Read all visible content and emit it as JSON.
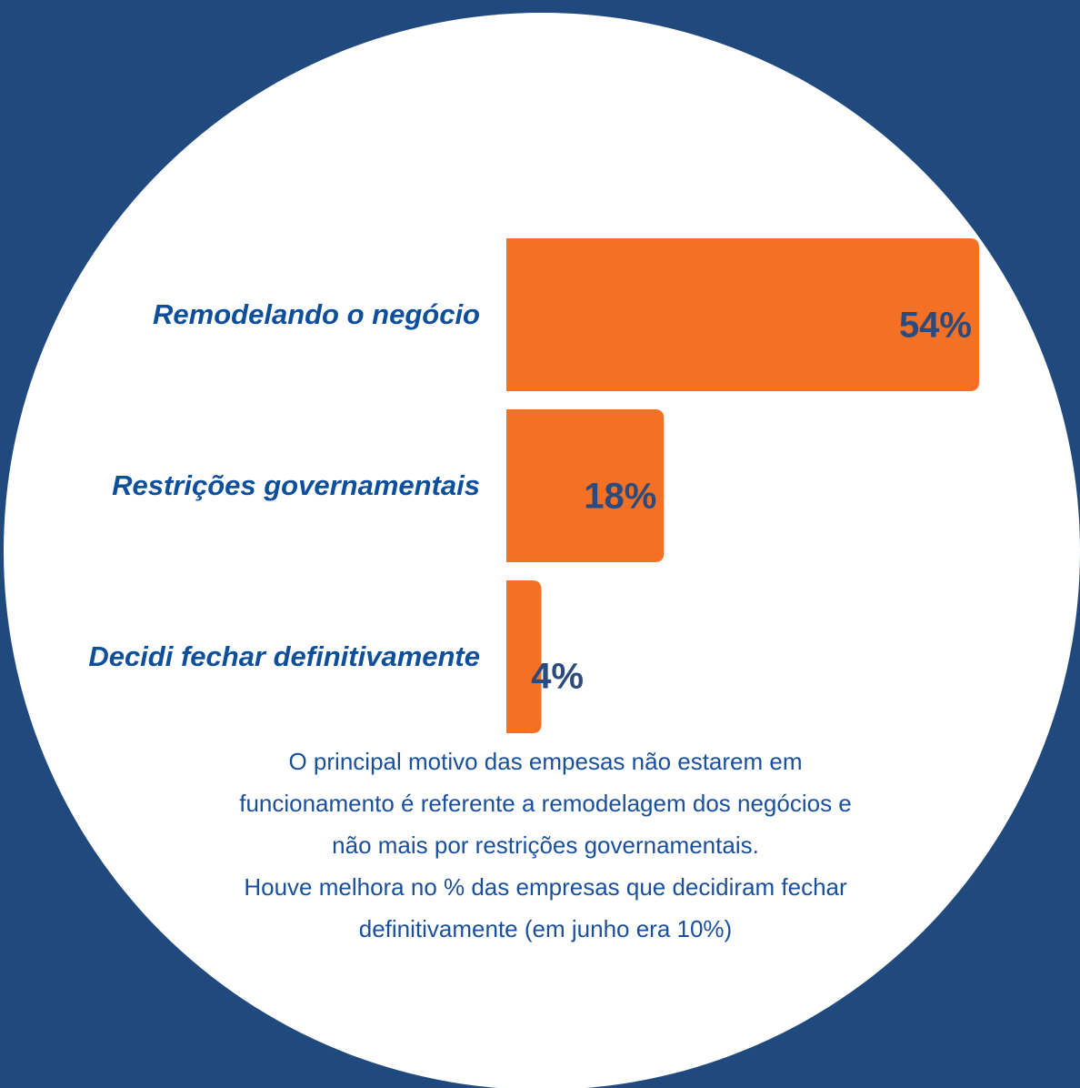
{
  "chart_data": {
    "type": "bar",
    "orientation": "horizontal",
    "categories": [
      "Remodelando o negócio",
      "Restrições governamentais",
      "Decidi fechar definitivamente"
    ],
    "values": [
      54,
      18,
      4
    ],
    "value_labels": [
      "54%",
      "18%",
      "4%"
    ],
    "color": "#f47024",
    "annotations": [
      "O principal motivo das empesas não estarem em",
      "funcionamento é referente a remodelagem dos negócios e",
      "não mais por restrições governamentais.",
      "Houve melhora no % das empresas que decidiram fechar",
      "definitivamente (em junho era 10%)"
    ]
  }
}
